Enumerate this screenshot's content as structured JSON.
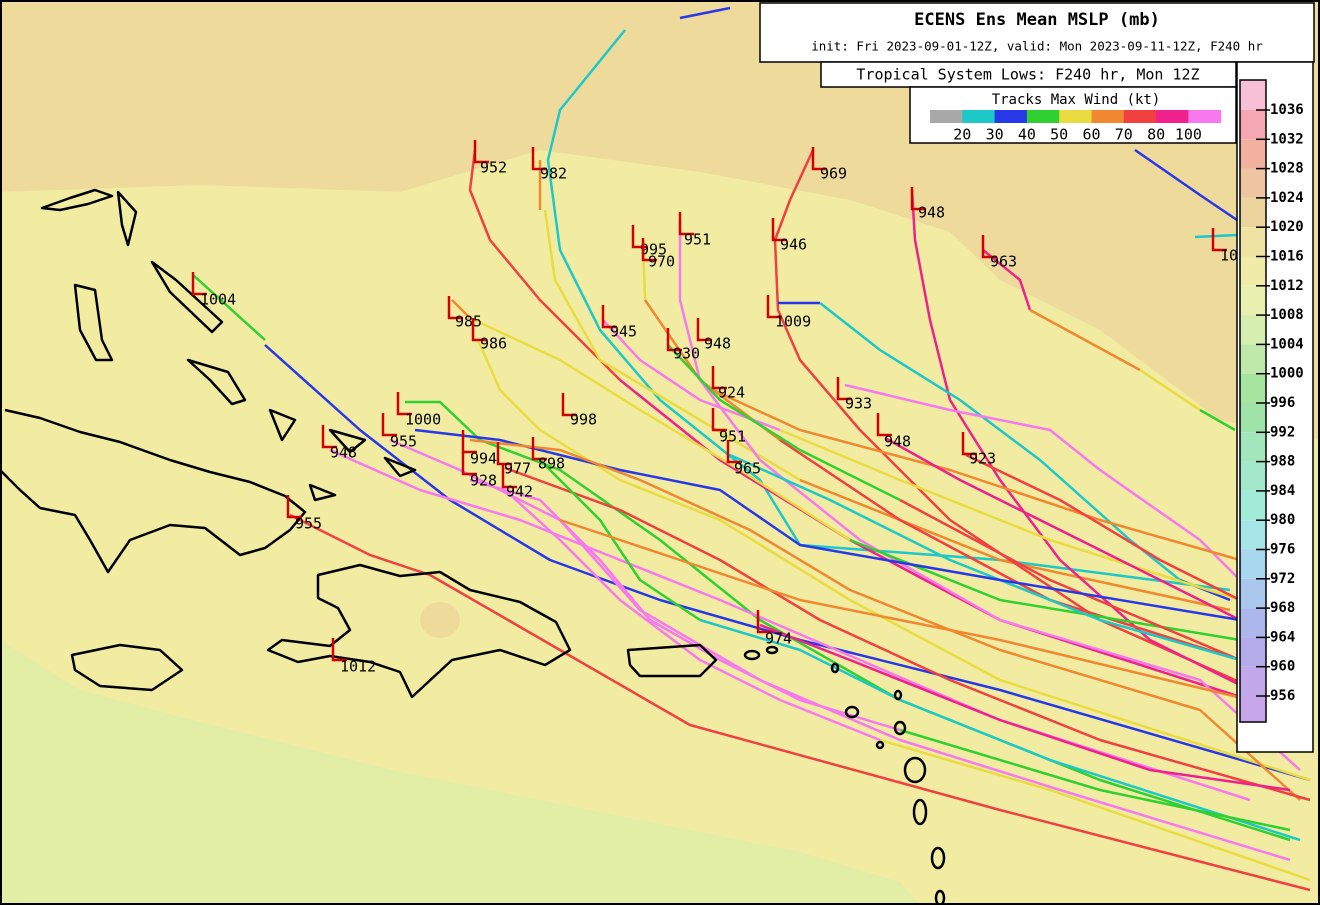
{
  "header": {
    "title": "ECENS Ens Mean MSLP (mb)",
    "subtitle": "init: Fri 2023-09-01-12Z, valid: Mon 2023-09-11-12Z, F240 hr",
    "lows_caption": "Tropical System Lows: F240 hr, Mon 12Z"
  },
  "wind_legend": {
    "title": "Tracks Max Wind (kt)",
    "ticks": [
      20,
      30,
      40,
      50,
      60,
      70,
      80,
      100
    ],
    "colors": [
      "#a8a8a8",
      "#1cc8c8",
      "#2838e8",
      "#30d030",
      "#e8dc40",
      "#f08830",
      "#f04040",
      "#f0208c",
      "#f878f0"
    ]
  },
  "colorbar": {
    "ticks": [
      1036,
      1032,
      1028,
      1024,
      1020,
      1016,
      1012,
      1008,
      1004,
      1000,
      996,
      992,
      988,
      984,
      980,
      976,
      972,
      968,
      964,
      960,
      956
    ],
    "colors": [
      "#f7c0d4",
      "#f3a8b4",
      "#f2b09f",
      "#efc4a0",
      "#ecd59c",
      "#efe3a4",
      "#f0eca8",
      "#e8f0b0",
      "#d6efb0",
      "#bfe9a8",
      "#a6e4a0",
      "#a0e3a8",
      "#a4e6bc",
      "#a4e8cc",
      "#a4ead8",
      "#a6e6e8",
      "#a8d8ee",
      "#aac8ee",
      "#acb8ec",
      "#b4acea",
      "#c0a8ea",
      "#c8a6ea"
    ]
  },
  "lows": [
    952,
    982,
    969,
    948,
    995,
    970,
    951,
    946,
    963,
    10,
    1004,
    985,
    986,
    945,
    930,
    948,
    1009,
    924,
    933,
    1000,
    998,
    951,
    948,
    923,
    955,
    948,
    994,
    977,
    898,
    928,
    942,
    965,
    955,
    974,
    1012
  ]
}
